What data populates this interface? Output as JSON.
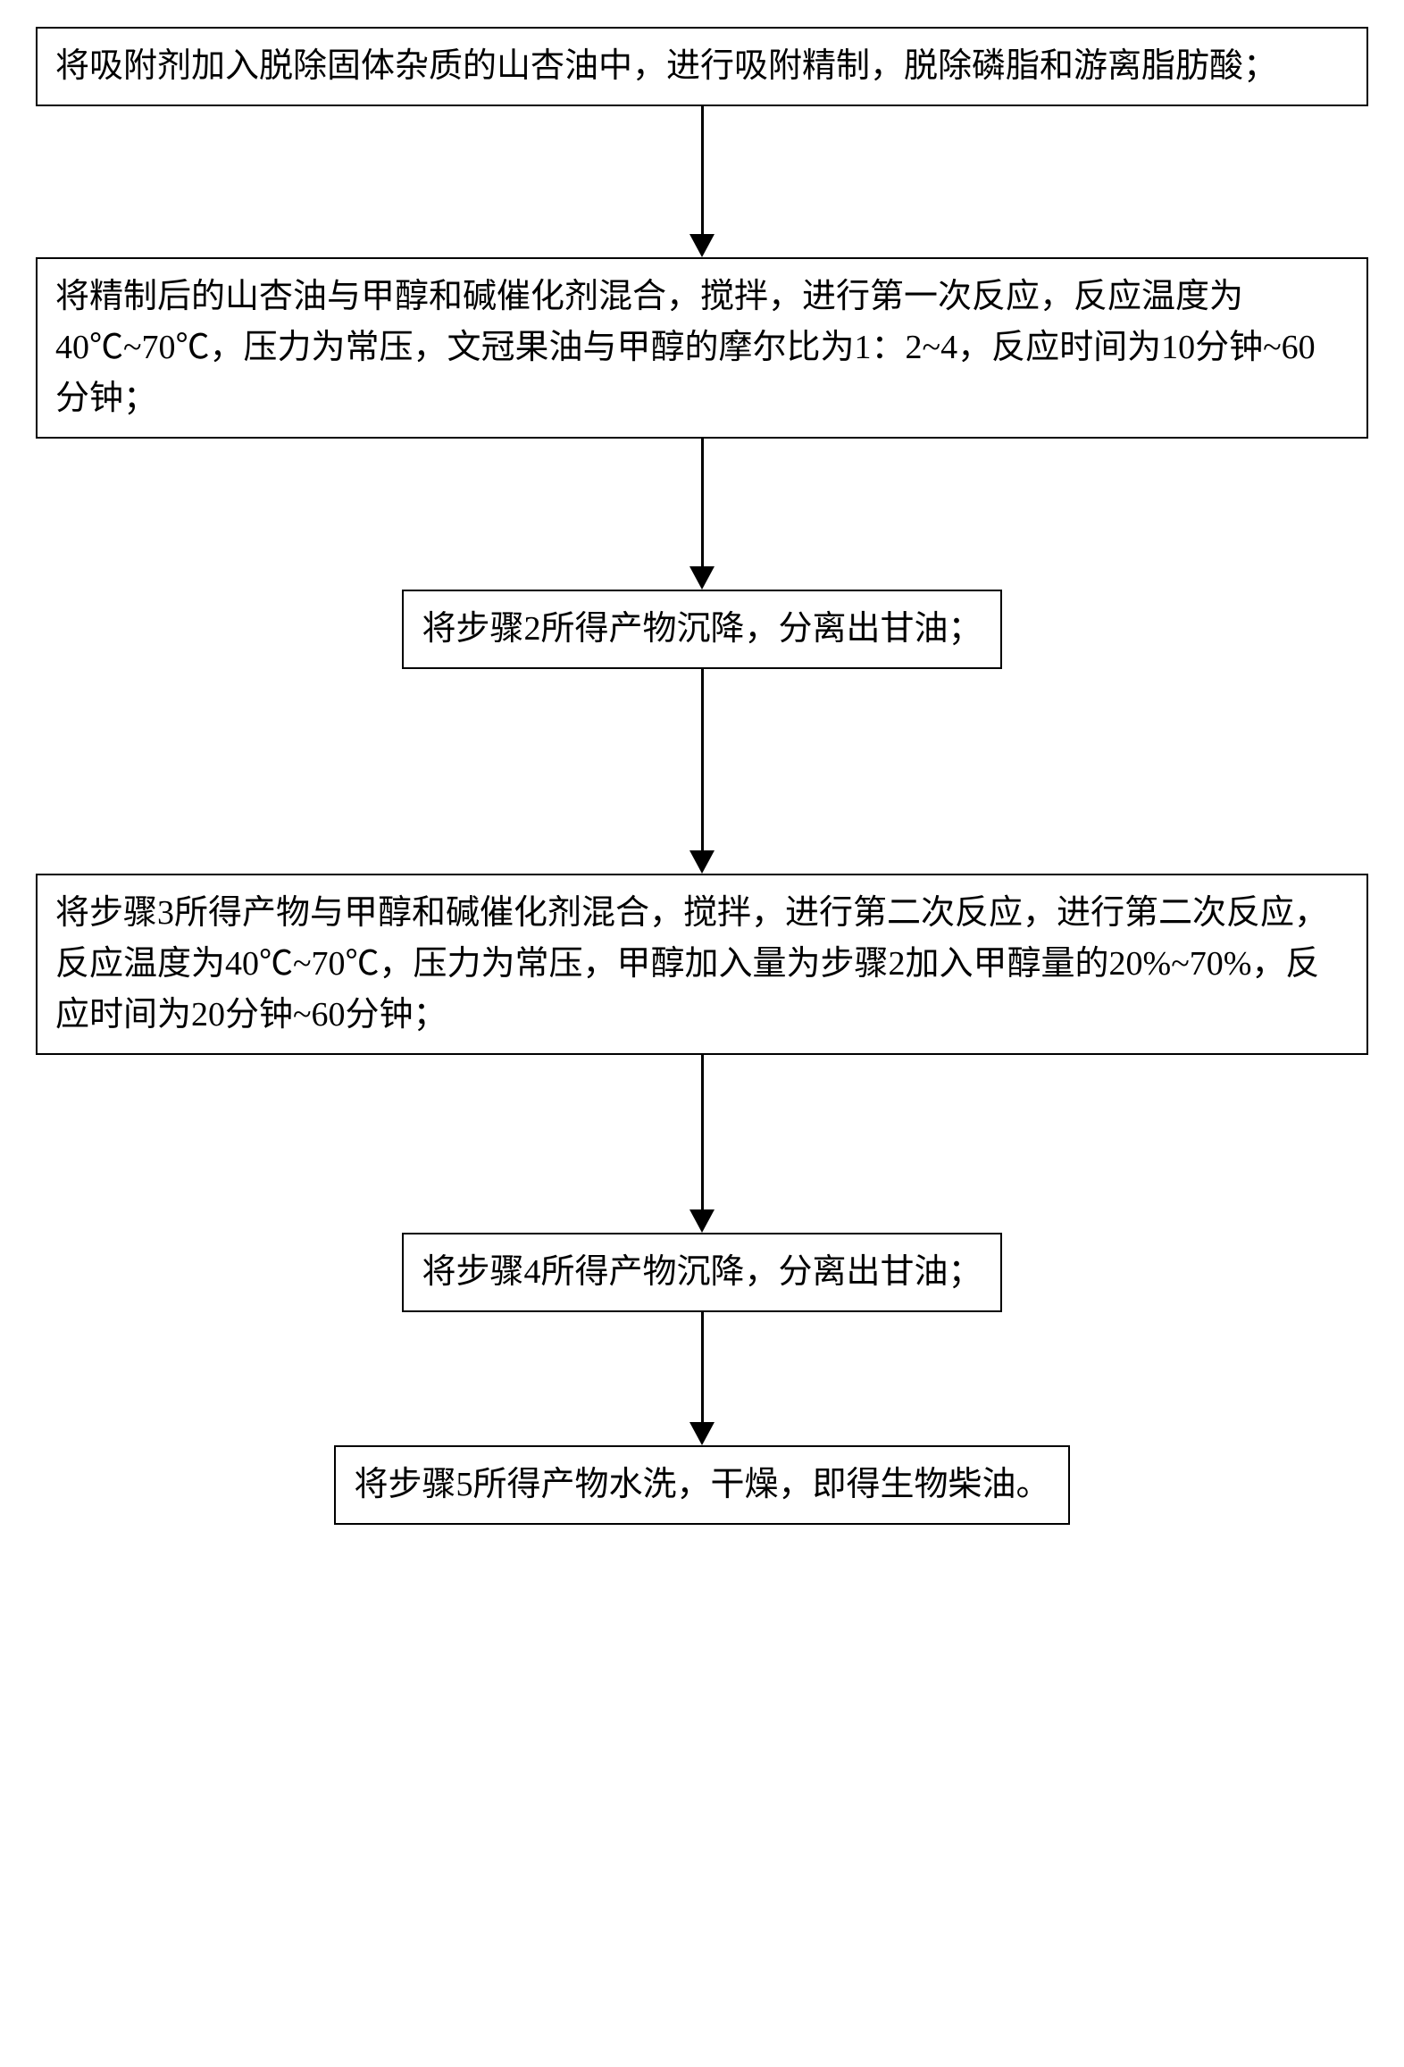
{
  "flowchart": {
    "type": "flowchart",
    "direction": "vertical",
    "background_color": "#ffffff",
    "border_color": "#000000",
    "border_width": 2,
    "text_color": "#000000",
    "font_size": 38,
    "font_family": "SimSun",
    "arrow_color": "#000000",
    "arrow_line_width": 3,
    "arrow_head_width": 28,
    "arrow_head_height": 26,
    "box_padding": "14px 20px",
    "line_height": 1.5,
    "nodes": [
      {
        "id": "step1",
        "text": "将吸附剂加入脱除固体杂质的山杏油中，进行吸附精制，脱除磷脂和游离脂肪酸；",
        "width": "wide",
        "arrow_gap_after": 170
      },
      {
        "id": "step2",
        "text": "将精制后的山杏油与甲醇和碱催化剂混合，搅拌，进行第一次反应，反应温度为40℃~70℃，压力为常压，文冠果油与甲醇的摩尔比为1：2~4，反应时间为10分钟~60分钟；",
        "width": "wide",
        "arrow_gap_after": 170
      },
      {
        "id": "step3",
        "text": "将步骤2所得产物沉降，分离出甘油；",
        "width": "narrow",
        "arrow_gap_after": 230
      },
      {
        "id": "step4",
        "text": "将步骤3所得产物与甲醇和碱催化剂混合，搅拌，进行第二次反应，进行第二次反应，反应温度为40℃~70℃，压力为常压，甲醇加入量为步骤2加入甲醇量的20%~70%，反应时间为20分钟~60分钟；",
        "width": "wide",
        "arrow_gap_after": 200
      },
      {
        "id": "step5",
        "text": "将步骤4所得产物沉降，分离出甘油；",
        "width": "narrow",
        "arrow_gap_after": 150
      },
      {
        "id": "step6",
        "text": "将步骤5所得产物水洗，干燥，即得生物柴油。",
        "width": "narrow",
        "arrow_gap_after": 0
      }
    ],
    "edges": [
      {
        "from": "step1",
        "to": "step2"
      },
      {
        "from": "step2",
        "to": "step3"
      },
      {
        "from": "step3",
        "to": "step4"
      },
      {
        "from": "step4",
        "to": "step5"
      },
      {
        "from": "step5",
        "to": "step6"
      }
    ]
  }
}
